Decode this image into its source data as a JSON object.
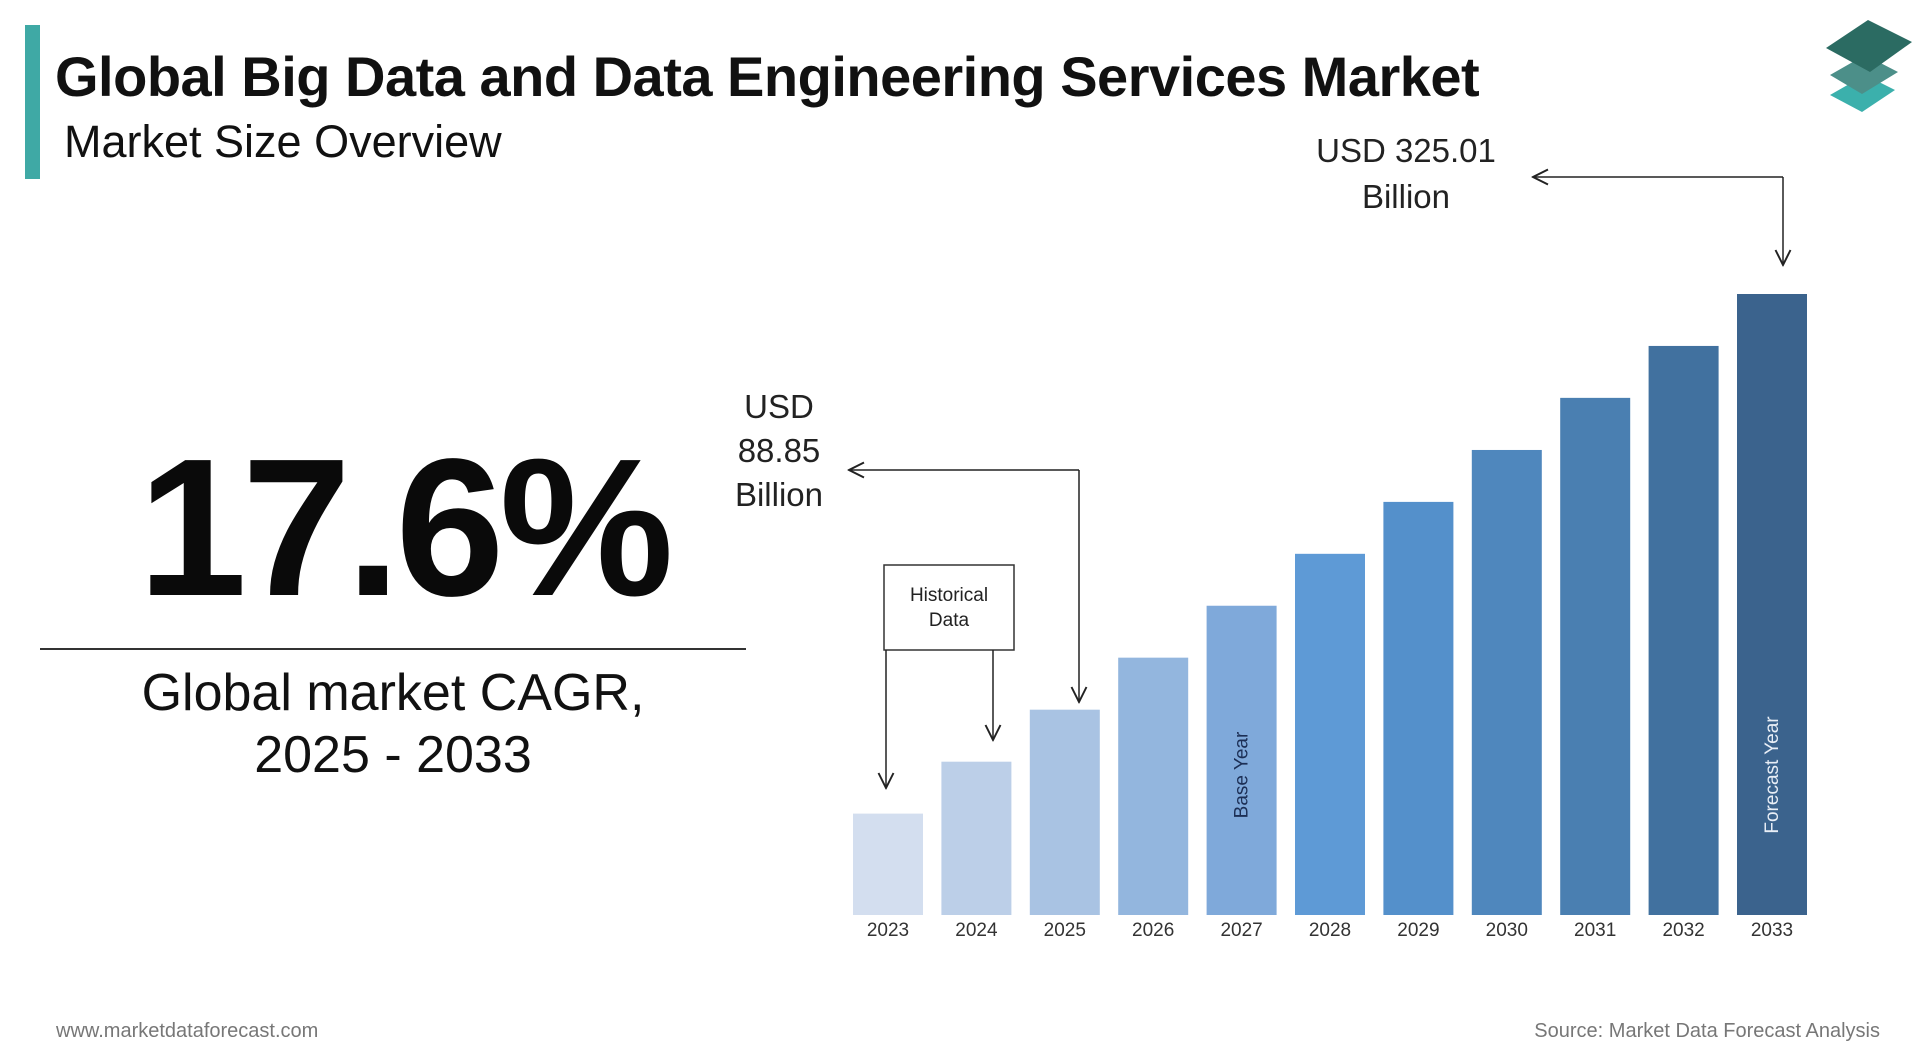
{
  "header": {
    "title": "Global Big Data and Data Engineering Services Market",
    "subtitle": "Market Size Overview",
    "accent_color": "#3fa9a5",
    "logo": "stacked-layers-logo"
  },
  "highlight": {
    "cagr_value": "17.6%",
    "caption_line1": "Global market CAGR,",
    "caption_line2": "2025 - 2033"
  },
  "chart_data": {
    "type": "bar",
    "categories": [
      "2023",
      "2024",
      "2025",
      "2026",
      "2027",
      "2028",
      "2029",
      "2030",
      "2031",
      "2032",
      "2033"
    ],
    "values": [
      29.8,
      59.3,
      88.85,
      118.4,
      147.9,
      177.4,
      206.9,
      236.4,
      266.0,
      295.5,
      325.01
    ],
    "unit": "USD Billion",
    "colors": [
      "#d3deef",
      "#bccfe8",
      "#a9c3e3",
      "#93b6de",
      "#7fa9da",
      "#5e9ad6",
      "#5490cb",
      "#4f87bd",
      "#4a7fb1",
      "#41719f",
      "#3b638d"
    ],
    "grid": false,
    "bar_labels": {
      "2027": "Base Year",
      "2033": "Forecast Year"
    },
    "annotations": {
      "historical": [
        "Historical",
        "Data"
      ],
      "start_value": [
        "USD",
        "88.85",
        "Billion"
      ],
      "end_value": [
        "USD 325.01",
        "Billion"
      ]
    }
  },
  "footer": {
    "website": "www.marketdataforecast.com",
    "source": "Source: Market Data Forecast Analysis"
  }
}
